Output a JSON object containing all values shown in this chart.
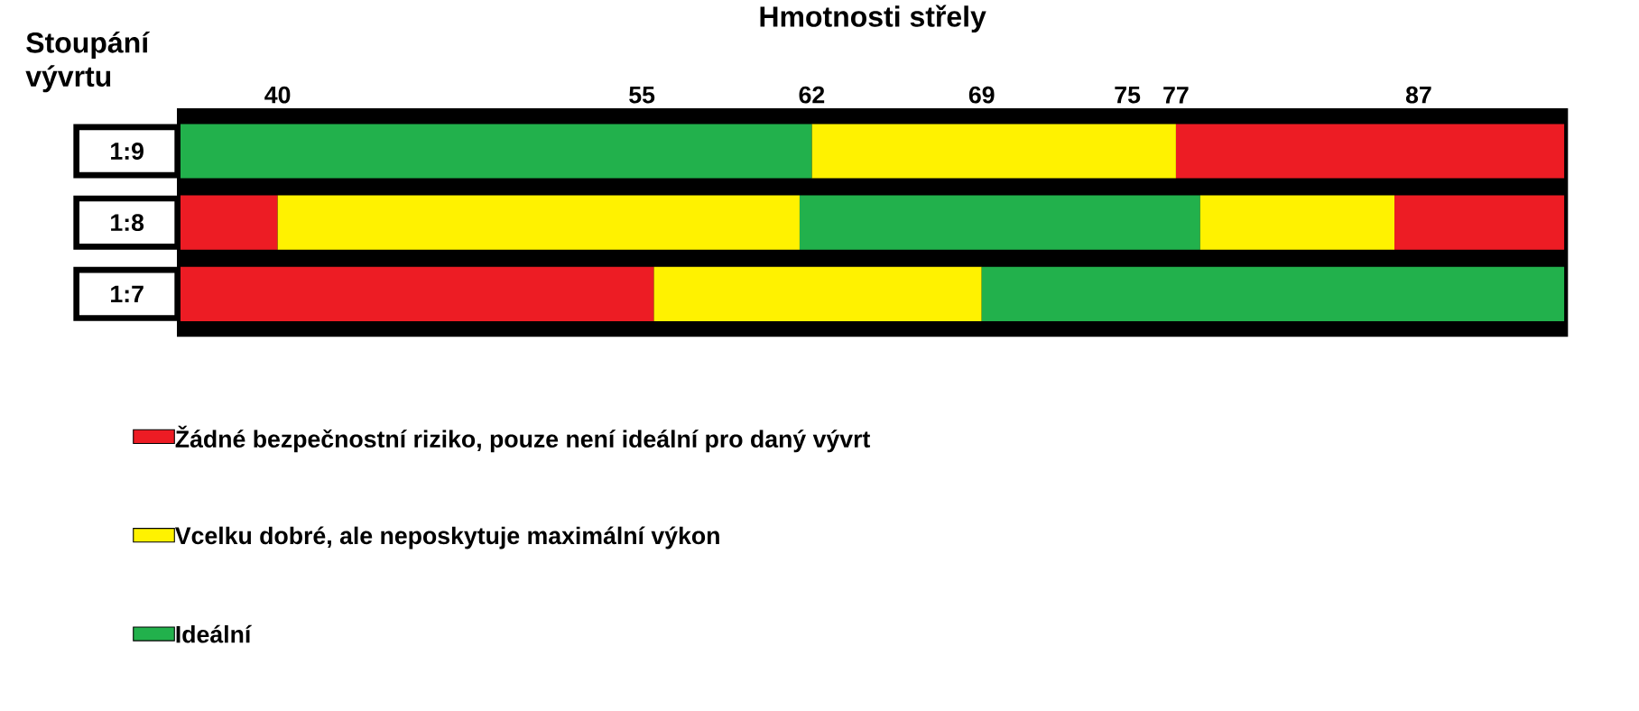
{
  "chart_data": {
    "type": "bar",
    "orientation": "horizontal",
    "xlabel": "Hmotnosti střely",
    "ylabel": "Stoupání vývrtu",
    "categories": [
      "1:9",
      "1:8",
      "1:7"
    ],
    "xlim": [
      36,
      93
    ],
    "xticks": [
      40,
      55,
      62,
      69,
      75,
      77,
      87
    ],
    "legend": "bottom",
    "series": [
      {
        "name": "Žádné bezpečnostní riziko, pouze není ideální pro daný vývrt",
        "color": "#ed1c24",
        "base": [
          77,
          36,
          36
        ],
        "values": [
          16,
          4,
          19.5
        ]
      },
      {
        "name": "Vcelku dobré, ale neposkytuje maximální výkon",
        "color": "#fff200",
        "base": [
          62,
          40,
          55.5
        ],
        "values": [
          15,
          21.5,
          13.5
        ]
      },
      {
        "name": "Ideální",
        "color": "#22b14c",
        "base": [
          36,
          61.5,
          69
        ],
        "values": [
          26,
          16.5,
          24
        ]
      },
      {
        "color": "#fff200",
        "base": [
          null,
          78,
          null
        ],
        "values": [
          null,
          8,
          null
        ]
      },
      {
        "color": "#ed1c24",
        "base": [
          null,
          86,
          null
        ],
        "values": [
          null,
          7,
          null
        ]
      }
    ]
  }
}
